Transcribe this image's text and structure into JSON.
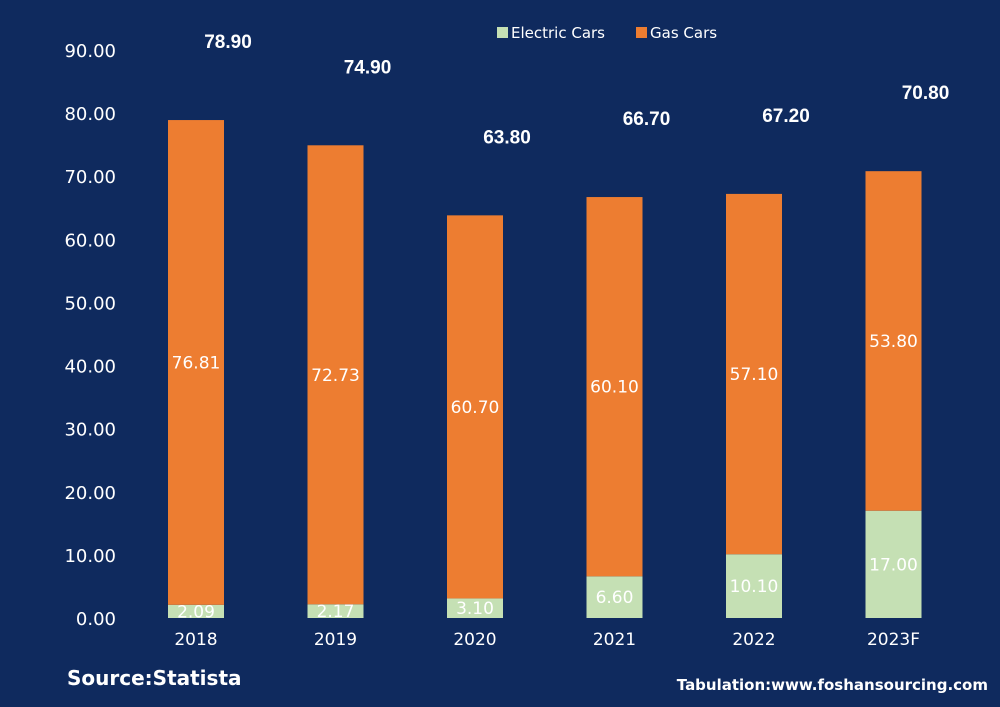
{
  "chart_data": {
    "type": "bar",
    "stacked": true,
    "categories": [
      "2018",
      "2019",
      "2020",
      "2021",
      "2022",
      "2023F"
    ],
    "series": [
      {
        "name": "Electric Cars",
        "values": [
          2.09,
          2.17,
          3.1,
          6.6,
          10.1,
          17.0
        ],
        "labels": [
          "2.09",
          "2.17",
          "3.10",
          "6.60",
          "10.10",
          "17.00"
        ],
        "color": "#c5e0b4"
      },
      {
        "name": "Gas Cars",
        "values": [
          76.81,
          72.73,
          60.7,
          60.1,
          57.1,
          53.8
        ],
        "labels": [
          "76.81",
          "72.73",
          "60.70",
          "60.10",
          "57.10",
          "53.80"
        ],
        "color": "#ed7d31"
      }
    ],
    "totals": [
      78.9,
      74.9,
      63.8,
      66.7,
      67.2,
      70.8
    ],
    "total_labels": [
      "78.90",
      "74.90",
      "63.80",
      "66.70",
      "67.20",
      "70.80"
    ],
    "ylim": [
      0,
      90
    ],
    "yticks": [
      "0.00",
      "10.00",
      "20.00",
      "30.00",
      "40.00",
      "50.00",
      "60.00",
      "70.00",
      "80.00",
      "90.00"
    ],
    "ytick_values": [
      0,
      10,
      20,
      30,
      40,
      50,
      60,
      70,
      80,
      90
    ],
    "legend_position": "top-center",
    "grid": false,
    "title": "",
    "xlabel": "",
    "ylabel": "",
    "background": "#0f2a5e"
  },
  "footer": {
    "source": "Source:Statista",
    "tabulation": "Tabulation:www.foshansourcing.com"
  }
}
